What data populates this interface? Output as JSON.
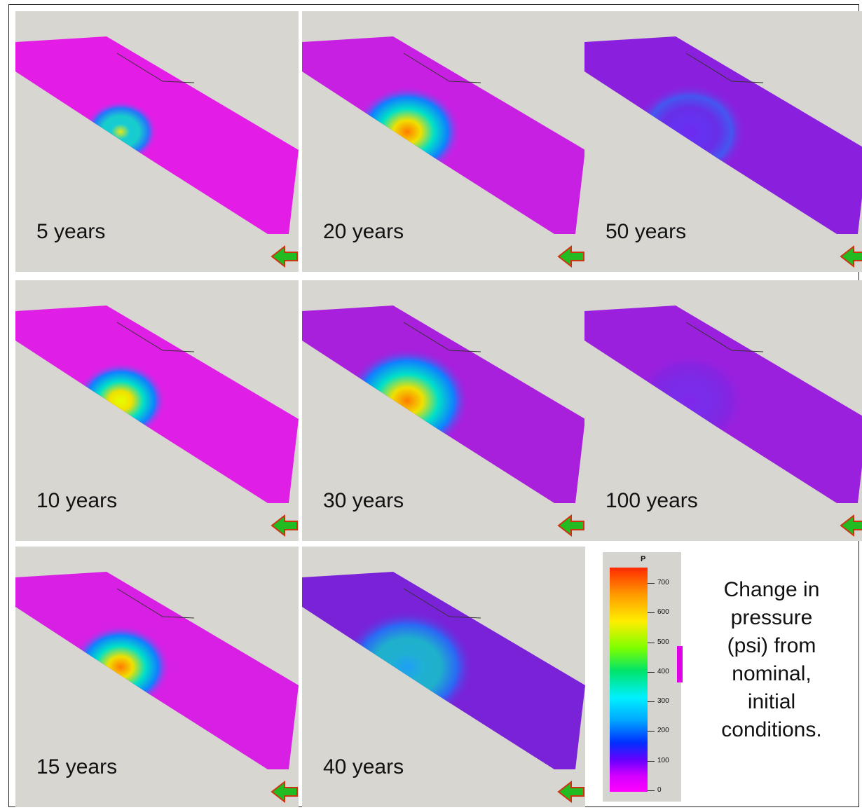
{
  "panels": [
    {
      "label": "5 years",
      "intensity": 0.55,
      "spread": 0.55,
      "base": "#e41de6"
    },
    {
      "label": "20 years",
      "intensity": 0.85,
      "spread": 0.95,
      "base": "#c820e2"
    },
    {
      "label": "50 years",
      "intensity": 0.22,
      "spread": 1.0,
      "base": "#8a20dd"
    },
    {
      "label": "10 years",
      "intensity": 0.7,
      "spread": 0.75,
      "base": "#df1fe5"
    },
    {
      "label": "30 years",
      "intensity": 0.75,
      "spread": 1.15,
      "base": "#a81fdc"
    },
    {
      "label": "100 years",
      "intensity": 0.05,
      "spread": 1.0,
      "base": "#9a20de"
    },
    {
      "label": "15 years",
      "intensity": 0.78,
      "spread": 0.85,
      "base": "#d81fe4"
    },
    {
      "label": "40 years",
      "intensity": 0.4,
      "spread": 1.25,
      "base": "#7a22d8"
    }
  ],
  "legend": {
    "title": "P",
    "ticks": [
      "700",
      "600",
      "500",
      "400",
      "300",
      "200",
      "100",
      "0"
    ]
  },
  "caption": {
    "lines": [
      "Change in",
      "pressure",
      "(psi) from",
      "nominal,",
      "initial",
      "conditions."
    ]
  },
  "colors": {
    "background": "#d8d6d1",
    "arrow_green": "#22bb22",
    "arrow_red": "#cc3311"
  }
}
